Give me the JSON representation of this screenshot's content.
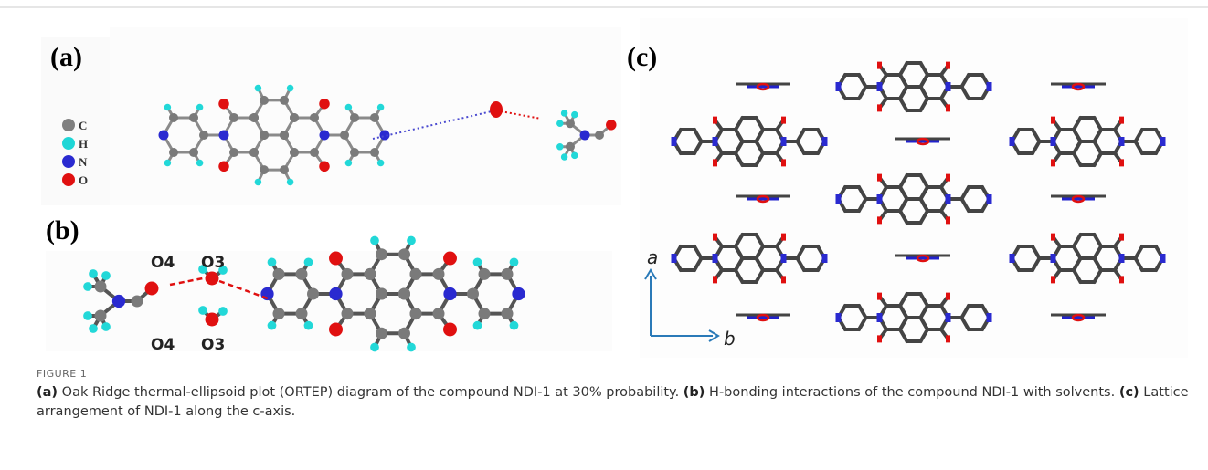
{
  "figure": {
    "panels": [
      {
        "label": "(a)",
        "legend": [
          "C",
          "H",
          "N",
          "O"
        ]
      },
      {
        "label": "(b)",
        "atom_labels": [
          "O4",
          "O3",
          "O4",
          "O3"
        ]
      },
      {
        "label": "(c)",
        "axes": [
          "a",
          "b"
        ]
      }
    ],
    "caption_label": "FIGURE 1",
    "caption": [
      {
        "label": "(a)",
        "text": " Oak Ridge thermal-ellipsoid plot (ORTEP) diagram of the compound NDI-1 at 30% probability. "
      },
      {
        "label": "(b)",
        "text": " H-bonding interactions of the compound NDI-1 with solvents. "
      },
      {
        "label": "(c)",
        "text": " Lattice arrangement of NDI-1 along the c-axis."
      }
    ]
  }
}
